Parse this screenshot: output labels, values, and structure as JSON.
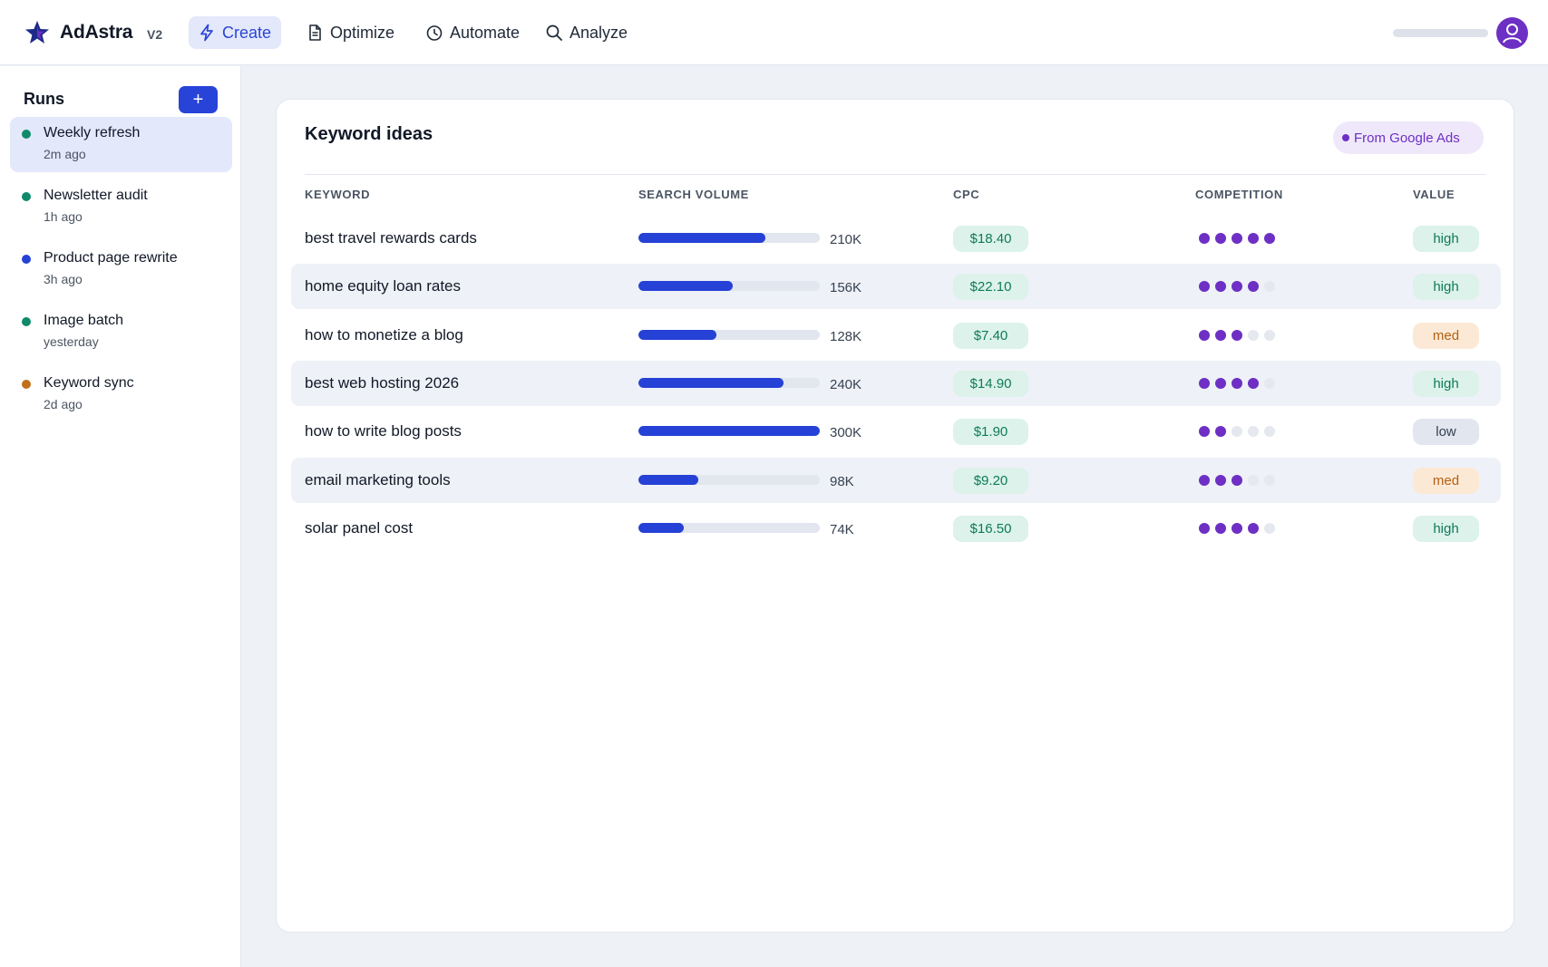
{
  "header": {
    "brand": "AdAstra",
    "version": "V2",
    "nav": [
      {
        "label": "Create",
        "icon": "bolt-icon",
        "active": true
      },
      {
        "label": "Optimize",
        "icon": "document-icon",
        "active": false
      },
      {
        "label": "Automate",
        "icon": "clock-icon",
        "active": false
      },
      {
        "label": "Analyze",
        "icon": "search-icon",
        "active": false
      }
    ]
  },
  "sidebar": {
    "title": "Runs",
    "add_label": "+",
    "runs": [
      {
        "name": "Weekly refresh",
        "time": "2m ago",
        "status_color": "#0f8a6a",
        "selected": true
      },
      {
        "name": "Newsletter audit",
        "time": "1h ago",
        "status_color": "#0f8a6a",
        "selected": false
      },
      {
        "name": "Product page rewrite",
        "time": "3h ago",
        "status_color": "#2541d6",
        "selected": false
      },
      {
        "name": "Image batch",
        "time": "yesterday",
        "status_color": "#0f8a6a",
        "selected": false
      },
      {
        "name": "Keyword sync",
        "time": "2d ago",
        "status_color": "#c0701a",
        "selected": false
      }
    ]
  },
  "card": {
    "title": "Keyword ideas",
    "source": "From Google Ads",
    "columns": [
      "KEYWORD",
      "SEARCH VOLUME",
      "CPC",
      "COMPETITION",
      "VALUE"
    ],
    "rows": [
      {
        "keyword": "best travel rewards cards",
        "volume_label": "210K",
        "volume_fraction": 0.7,
        "cpc": "$18.40",
        "competition": 5,
        "value": "high"
      },
      {
        "keyword": "home equity loan rates",
        "volume_label": "156K",
        "volume_fraction": 0.52,
        "cpc": "$22.10",
        "competition": 4,
        "value": "high"
      },
      {
        "keyword": "how to monetize a blog",
        "volume_label": "128K",
        "volume_fraction": 0.43,
        "cpc": "$7.40",
        "competition": 3,
        "value": "med"
      },
      {
        "keyword": "best web hosting 2026",
        "volume_label": "240K",
        "volume_fraction": 0.8,
        "cpc": "$14.90",
        "competition": 4,
        "value": "high"
      },
      {
        "keyword": "how to write blog posts",
        "volume_label": "300K",
        "volume_fraction": 1.0,
        "cpc": "$1.90",
        "competition": 2,
        "value": "low"
      },
      {
        "keyword": "email marketing tools",
        "volume_label": "98K",
        "volume_fraction": 0.33,
        "cpc": "$9.20",
        "competition": 3,
        "value": "med"
      },
      {
        "keyword": "solar panel cost",
        "volume_label": "74K",
        "volume_fraction": 0.25,
        "cpc": "$16.50",
        "competition": 4,
        "value": "high"
      }
    ]
  },
  "colors": {
    "accent": "#2743d8",
    "competition": "#6d2fc4",
    "positive": "#0f7a5a"
  }
}
